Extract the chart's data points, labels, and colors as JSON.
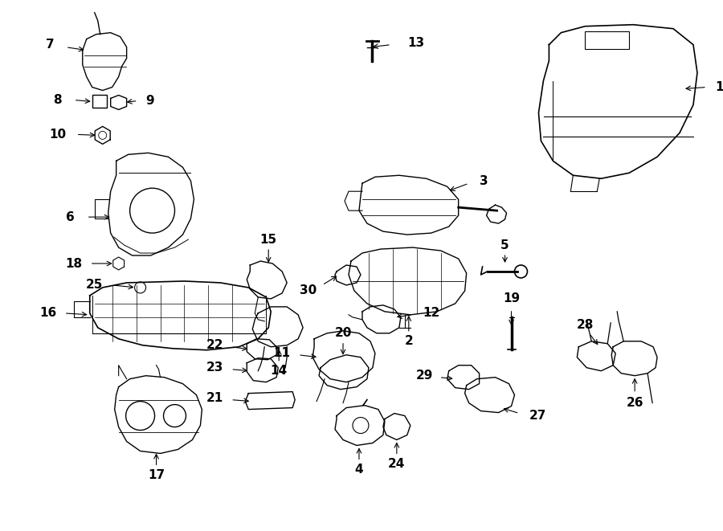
{
  "bg_color": "#ffffff",
  "line_color": "#000000",
  "fig_width": 9.0,
  "fig_height": 6.61,
  "dpi": 100
}
